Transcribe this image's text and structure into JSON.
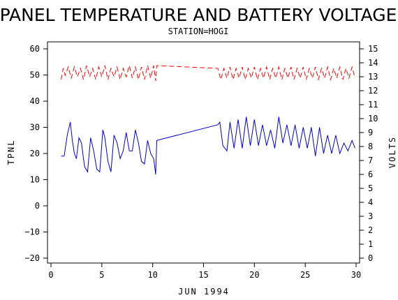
{
  "chart_data": {
    "type": "line",
    "title": "PANEL TEMPERATURE AND BATTERY VOLTAGE",
    "subtitle": "STATION=HOGI",
    "xlabel": "JUN 1994",
    "ylabel_left": "TPNL",
    "ylabel_right": "VOLTS",
    "xlim": [
      0,
      30
    ],
    "ylim_left": [
      -20,
      60
    ],
    "ylim_right": [
      0,
      15
    ],
    "x_ticks": [
      0,
      5,
      10,
      15,
      20,
      25,
      30
    ],
    "y_ticks_left": [
      -20,
      -10,
      0,
      10,
      20,
      30,
      40,
      50,
      60
    ],
    "y_ticks_right": [
      0,
      1,
      2,
      3,
      4,
      5,
      6,
      7,
      8,
      9,
      10,
      11,
      12,
      13,
      14,
      15
    ],
    "grid": false,
    "series": [
      {
        "axis": "left",
        "style": "solid",
        "color": "#0000cc",
        "points": [
          [
            1.0,
            19
          ],
          [
            1.3,
            19
          ],
          [
            1.6,
            27
          ],
          [
            1.9,
            32
          ],
          [
            2.1,
            25
          ],
          [
            2.3,
            20
          ],
          [
            2.5,
            18
          ],
          [
            2.75,
            26
          ],
          [
            3.0,
            24
          ],
          [
            3.3,
            15
          ],
          [
            3.6,
            13
          ],
          [
            3.9,
            26
          ],
          [
            4.2,
            21
          ],
          [
            4.5,
            14
          ],
          [
            4.8,
            13
          ],
          [
            5.1,
            29
          ],
          [
            5.3,
            26
          ],
          [
            5.6,
            17
          ],
          [
            5.9,
            13
          ],
          [
            6.2,
            27
          ],
          [
            6.5,
            24
          ],
          [
            6.8,
            18
          ],
          [
            7.1,
            21
          ],
          [
            7.4,
            28
          ],
          [
            7.7,
            21
          ],
          [
            8.0,
            21
          ],
          [
            8.3,
            29
          ],
          [
            8.6,
            24
          ],
          [
            8.9,
            17
          ],
          [
            9.2,
            16
          ],
          [
            9.5,
            25
          ],
          [
            9.8,
            20
          ],
          [
            10.1,
            18
          ],
          [
            10.3,
            12
          ],
          [
            10.4,
            25
          ],
          [
            16.4,
            31
          ],
          [
            16.6,
            32
          ],
          [
            16.9,
            23
          ],
          [
            17.3,
            21
          ],
          [
            17.6,
            32
          ],
          [
            18.0,
            22
          ],
          [
            18.4,
            33
          ],
          [
            18.8,
            22
          ],
          [
            19.2,
            34
          ],
          [
            19.6,
            23
          ],
          [
            20.0,
            33
          ],
          [
            20.4,
            23
          ],
          [
            20.8,
            31
          ],
          [
            21.2,
            23
          ],
          [
            21.6,
            29
          ],
          [
            22.0,
            22
          ],
          [
            22.4,
            34
          ],
          [
            22.8,
            24
          ],
          [
            23.2,
            31
          ],
          [
            23.6,
            23
          ],
          [
            24.0,
            31
          ],
          [
            24.4,
            22
          ],
          [
            24.8,
            30
          ],
          [
            25.2,
            22
          ],
          [
            25.6,
            30
          ],
          [
            26.0,
            19
          ],
          [
            26.4,
            30
          ],
          [
            26.8,
            20
          ],
          [
            27.2,
            27
          ],
          [
            27.6,
            20
          ],
          [
            28.0,
            27
          ],
          [
            28.4,
            20
          ],
          [
            28.8,
            24
          ],
          [
            29.2,
            21
          ],
          [
            29.6,
            25
          ],
          [
            29.9,
            22
          ]
        ]
      },
      {
        "axis": "right",
        "style": "dashed",
        "color": "#ff0000",
        "points": [
          [
            1.0,
            12.8
          ],
          [
            1.2,
            13.6
          ],
          [
            1.4,
            13.1
          ],
          [
            1.7,
            13.7
          ],
          [
            2.0,
            12.9
          ],
          [
            2.3,
            13.7
          ],
          [
            2.6,
            13.0
          ],
          [
            2.9,
            13.6
          ],
          [
            3.2,
            12.8
          ],
          [
            3.5,
            13.8
          ],
          [
            3.8,
            13.0
          ],
          [
            4.1,
            13.6
          ],
          [
            4.4,
            12.8
          ],
          [
            4.7,
            13.7
          ],
          [
            5.0,
            13.0
          ],
          [
            5.3,
            13.8
          ],
          [
            5.6,
            12.8
          ],
          [
            5.9,
            13.6
          ],
          [
            6.2,
            13.0
          ],
          [
            6.5,
            13.7
          ],
          [
            6.8,
            12.8
          ],
          [
            7.1,
            13.6
          ],
          [
            7.4,
            13.0
          ],
          [
            7.7,
            13.8
          ],
          [
            8.0,
            12.9
          ],
          [
            8.3,
            13.7
          ],
          [
            8.6,
            12.8
          ],
          [
            8.9,
            13.7
          ],
          [
            9.2,
            12.8
          ],
          [
            9.5,
            13.8
          ],
          [
            9.8,
            12.9
          ],
          [
            10.1,
            13.8
          ],
          [
            10.3,
            12.7
          ],
          [
            10.4,
            13.8
          ],
          [
            16.4,
            13.6
          ],
          [
            16.7,
            12.8
          ],
          [
            17.0,
            13.6
          ],
          [
            17.3,
            12.9
          ],
          [
            17.6,
            13.7
          ],
          [
            17.9,
            12.8
          ],
          [
            18.2,
            13.6
          ],
          [
            18.5,
            12.9
          ],
          [
            18.8,
            13.7
          ],
          [
            19.1,
            12.8
          ],
          [
            19.4,
            13.6
          ],
          [
            19.7,
            12.9
          ],
          [
            20.0,
            13.7
          ],
          [
            20.3,
            12.8
          ],
          [
            20.6,
            13.6
          ],
          [
            20.9,
            12.9
          ],
          [
            21.2,
            13.7
          ],
          [
            21.5,
            12.8
          ],
          [
            21.8,
            13.6
          ],
          [
            22.1,
            12.9
          ],
          [
            22.4,
            13.7
          ],
          [
            22.7,
            12.8
          ],
          [
            23.0,
            13.6
          ],
          [
            23.3,
            12.9
          ],
          [
            23.6,
            13.7
          ],
          [
            23.9,
            12.8
          ],
          [
            24.2,
            13.6
          ],
          [
            24.5,
            12.9
          ],
          [
            24.8,
            13.7
          ],
          [
            25.1,
            12.8
          ],
          [
            25.4,
            13.6
          ],
          [
            25.7,
            12.9
          ],
          [
            26.0,
            13.7
          ],
          [
            26.3,
            12.8
          ],
          [
            26.6,
            13.6
          ],
          [
            26.9,
            12.9
          ],
          [
            27.2,
            13.7
          ],
          [
            27.5,
            12.8
          ],
          [
            27.8,
            13.6
          ],
          [
            28.1,
            12.9
          ],
          [
            28.4,
            13.7
          ],
          [
            28.7,
            12.8
          ],
          [
            29.0,
            13.6
          ],
          [
            29.3,
            12.9
          ],
          [
            29.6,
            13.7
          ],
          [
            29.9,
            12.9
          ]
        ]
      }
    ]
  }
}
